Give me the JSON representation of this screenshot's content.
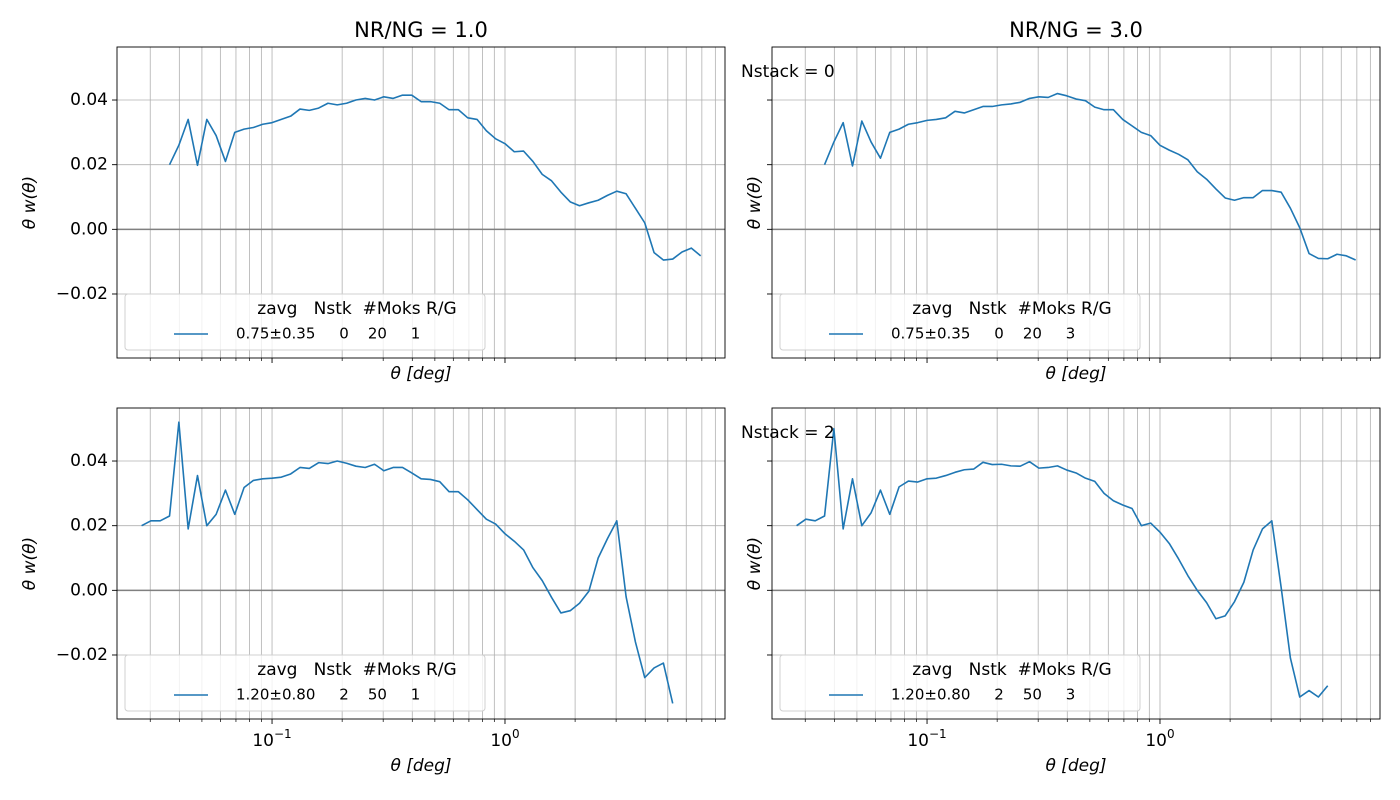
{
  "chart_data": [
    {
      "type": "line",
      "title": "NR/NG = 1.0",
      "xlabel": "θ [deg]",
      "ylabel": "θ w(θ)",
      "xscale": "log",
      "grid": true,
      "hline": 0,
      "xlim": [
        0.0216,
        8.8
      ],
      "ylim": [
        -0.0398,
        0.0564
      ],
      "xtick_labels": false,
      "ytick_labels": true,
      "xticks": [
        0.1,
        1
      ],
      "xminorticks": [
        0.03,
        0.04,
        0.05,
        0.06,
        0.07,
        0.08,
        0.09,
        0.2,
        0.3,
        0.4,
        0.5,
        0.6,
        0.7,
        0.8,
        0.9,
        2,
        3,
        4,
        5,
        6,
        7,
        8
      ],
      "yticks": [
        {
          "value": -0.02,
          "label": "−0.02"
        },
        {
          "value": 0,
          "label": "0.00"
        },
        {
          "value": 0.02,
          "label": "0.02"
        },
        {
          "value": 0.04,
          "label": "0.04"
        }
      ],
      "legend": "lower left",
      "legend_title": "zavg   Nstk  #Moks R/G",
      "x": [
        0.03631,
        0.03981,
        0.04365,
        0.04786,
        0.05248,
        0.05754,
        0.0631,
        0.06918,
        0.07586,
        0.08318,
        0.0912,
        0.1,
        0.1096,
        0.1202,
        0.1318,
        0.1445,
        0.1585,
        0.1738,
        0.1905,
        0.2089,
        0.2291,
        0.2512,
        0.2754,
        0.302,
        0.3311,
        0.3631,
        0.3981,
        0.4365,
        0.4786,
        0.5248,
        0.5754,
        0.631,
        0.6918,
        0.7586,
        0.8318,
        0.912,
        1,
        1.096,
        1.202,
        1.318,
        1.445,
        1.585,
        1.738,
        1.905,
        2.089,
        2.291,
        2.512,
        2.754,
        3.02,
        3.311,
        3.631,
        3.981,
        4.365,
        4.786,
        5.248,
        5.754,
        6.31,
        6.918
      ],
      "series": [
        {
          "name": "0.75±0.35     0    20     1",
          "color": "#1f77b4",
          "values": [
            0.02,
            0.026,
            0.034,
            0.0198,
            0.034,
            0.029,
            0.021,
            0.03,
            0.031,
            0.0315,
            0.0325,
            0.033,
            0.034,
            0.035,
            0.0372,
            0.0368,
            0.0375,
            0.039,
            0.0385,
            0.039,
            0.04,
            0.0405,
            0.04,
            0.041,
            0.0405,
            0.0415,
            0.0415,
            0.0395,
            0.0395,
            0.039,
            0.037,
            0.037,
            0.0345,
            0.034,
            0.0305,
            0.028,
            0.0265,
            0.024,
            0.0242,
            0.021,
            0.017,
            0.015,
            0.0115,
            0.0085,
            0.0073,
            0.0082,
            0.009,
            0.0105,
            0.0118,
            0.011,
            0.0065,
            0.002,
            -0.0072,
            -0.0095,
            -0.0092,
            -0.007,
            -0.0058,
            -0.0082
          ]
        }
      ]
    },
    {
      "type": "line",
      "title": "NR/NG = 3.0",
      "annotation": "Nstack = 0",
      "xlabel": "θ [deg]",
      "ylabel": "θ w(θ)",
      "xscale": "log",
      "grid": true,
      "hline": 0,
      "xlim": [
        0.0216,
        8.8
      ],
      "ylim": [
        -0.0398,
        0.0564
      ],
      "xtick_labels": false,
      "ytick_labels": false,
      "xticks": [
        0.1,
        1
      ],
      "xminorticks": [
        0.03,
        0.04,
        0.05,
        0.06,
        0.07,
        0.08,
        0.09,
        0.2,
        0.3,
        0.4,
        0.5,
        0.6,
        0.7,
        0.8,
        0.9,
        2,
        3,
        4,
        5,
        6,
        7,
        8
      ],
      "yticks": [
        -0.02,
        0,
        0.02,
        0.04
      ],
      "legend": "lower left",
      "legend_title": "zavg   Nstk  #Moks R/G",
      "x": [
        0.03631,
        0.03981,
        0.04365,
        0.04786,
        0.05248,
        0.05754,
        0.0631,
        0.06918,
        0.07586,
        0.08318,
        0.0912,
        0.1,
        0.1096,
        0.1202,
        0.1318,
        0.1445,
        0.1585,
        0.1738,
        0.1905,
        0.2089,
        0.2291,
        0.2512,
        0.2754,
        0.302,
        0.3311,
        0.3631,
        0.3981,
        0.4365,
        0.4786,
        0.5248,
        0.5754,
        0.631,
        0.6918,
        0.7586,
        0.8318,
        0.912,
        1,
        1.096,
        1.202,
        1.318,
        1.445,
        1.585,
        1.738,
        1.905,
        2.089,
        2.291,
        2.512,
        2.754,
        3.02,
        3.311,
        3.631,
        3.981,
        4.365,
        4.786,
        5.248,
        5.754,
        6.31,
        6.918
      ],
      "series": [
        {
          "name": "0.75±0.35     0    20     3",
          "color": "#1f77b4",
          "values": [
            0.02,
            0.027,
            0.033,
            0.0196,
            0.0335,
            0.027,
            0.022,
            0.03,
            0.031,
            0.0325,
            0.033,
            0.0337,
            0.034,
            0.0345,
            0.0365,
            0.036,
            0.037,
            0.038,
            0.038,
            0.0385,
            0.0388,
            0.0393,
            0.0405,
            0.041,
            0.0408,
            0.042,
            0.0413,
            0.0403,
            0.0398,
            0.0378,
            0.037,
            0.037,
            0.034,
            0.032,
            0.03,
            0.029,
            0.026,
            0.0245,
            0.0232,
            0.0215,
            0.0178,
            0.0155,
            0.0125,
            0.0097,
            0.009,
            0.0098,
            0.0098,
            0.012,
            0.012,
            0.0115,
            0.0065,
            0.0005,
            -0.0075,
            -0.009,
            -0.0091,
            -0.0077,
            -0.0082,
            -0.0095
          ]
        }
      ]
    },
    {
      "type": "line",
      "xlabel": "θ [deg]",
      "ylabel": "θ w(θ)",
      "xscale": "log",
      "grid": true,
      "hline": 0,
      "xlim": [
        0.0216,
        8.8
      ],
      "ylim": [
        -0.0398,
        0.0564
      ],
      "xtick_labels": true,
      "ytick_labels": true,
      "xticks": [
        {
          "value": 0.1,
          "label": "10",
          "exponent": "−1"
        },
        {
          "value": 1,
          "label": "10",
          "exponent": "0"
        }
      ],
      "xminorticks": [
        0.03,
        0.04,
        0.05,
        0.06,
        0.07,
        0.08,
        0.09,
        0.2,
        0.3,
        0.4,
        0.5,
        0.6,
        0.7,
        0.8,
        0.9,
        2,
        3,
        4,
        5,
        6,
        7,
        8
      ],
      "yticks": [
        {
          "value": -0.02,
          "label": "−0.02"
        },
        {
          "value": 0,
          "label": "0.00"
        },
        {
          "value": 0.02,
          "label": "0.02"
        },
        {
          "value": 0.04,
          "label": "0.04"
        }
      ],
      "legend": "lower left",
      "legend_title": "zavg   Nstk  #Moks R/G",
      "x": [
        0.02754,
        0.0302,
        0.03311,
        0.03631,
        0.03981,
        0.04365,
        0.04786,
        0.05248,
        0.05754,
        0.0631,
        0.06918,
        0.07586,
        0.08318,
        0.0912,
        0.1,
        0.1096,
        0.1202,
        0.1318,
        0.1445,
        0.1585,
        0.1738,
        0.1905,
        0.2089,
        0.2291,
        0.2512,
        0.2754,
        0.302,
        0.3311,
        0.3631,
        0.3981,
        0.4365,
        0.4786,
        0.5248,
        0.5754,
        0.631,
        0.6918,
        0.7586,
        0.8318,
        0.912,
        1,
        1.096,
        1.202,
        1.318,
        1.445,
        1.585,
        1.738,
        1.905,
        2.089,
        2.291,
        2.512,
        2.754,
        3.02,
        3.311,
        3.631,
        3.981,
        4.365,
        4.786,
        5.248
      ],
      "series": [
        {
          "name": "1.20±0.80     2    50     1",
          "color": "#1f77b4",
          "values": [
            0.02,
            0.0215,
            0.0215,
            0.023,
            0.052,
            0.019,
            0.0355,
            0.02,
            0.0235,
            0.031,
            0.0235,
            0.0318,
            0.034,
            0.0345,
            0.0347,
            0.035,
            0.036,
            0.038,
            0.0377,
            0.0395,
            0.0392,
            0.04,
            0.0393,
            0.0384,
            0.038,
            0.039,
            0.037,
            0.038,
            0.038,
            0.0363,
            0.0345,
            0.0343,
            0.0336,
            0.0305,
            0.0305,
            0.028,
            0.025,
            0.022,
            0.0205,
            0.0175,
            0.0152,
            0.0125,
            0.007,
            0.003,
            -0.0022,
            -0.007,
            -0.0063,
            -0.004,
            -0.0003,
            0.01,
            0.016,
            0.0215,
            -0.002,
            -0.016,
            -0.027,
            -0.024,
            -0.0225,
            -0.035
          ]
        }
      ]
    },
    {
      "type": "line",
      "annotation": "Nstack = 2",
      "xlabel": "θ [deg]",
      "ylabel": "θ w(θ)",
      "xscale": "log",
      "grid": true,
      "hline": 0,
      "xlim": [
        0.0216,
        8.8
      ],
      "ylim": [
        -0.0398,
        0.0564
      ],
      "xtick_labels": true,
      "ytick_labels": false,
      "xticks": [
        {
          "value": 0.1,
          "label": "10",
          "exponent": "−1"
        },
        {
          "value": 1,
          "label": "10",
          "exponent": "0"
        }
      ],
      "xminorticks": [
        0.03,
        0.04,
        0.05,
        0.06,
        0.07,
        0.08,
        0.09,
        0.2,
        0.3,
        0.4,
        0.5,
        0.6,
        0.7,
        0.8,
        0.9,
        2,
        3,
        4,
        5,
        6,
        7,
        8
      ],
      "yticks": [
        -0.02,
        0,
        0.02,
        0.04
      ],
      "legend": "lower left",
      "legend_title": "zavg   Nstk  #Moks R/G",
      "x": [
        0.02754,
        0.0302,
        0.03311,
        0.03631,
        0.03981,
        0.04365,
        0.04786,
        0.05248,
        0.05754,
        0.0631,
        0.06918,
        0.07586,
        0.08318,
        0.0912,
        0.1,
        0.1096,
        0.1202,
        0.1318,
        0.1445,
        0.1585,
        0.1738,
        0.1905,
        0.2089,
        0.2291,
        0.2512,
        0.2754,
        0.302,
        0.3311,
        0.3631,
        0.3981,
        0.4365,
        0.4786,
        0.5248,
        0.5754,
        0.631,
        0.6918,
        0.7586,
        0.8318,
        0.912,
        1,
        1.096,
        1.202,
        1.318,
        1.445,
        1.585,
        1.738,
        1.905,
        2.089,
        2.291,
        2.512,
        2.754,
        3.02,
        3.311,
        3.631,
        3.981,
        4.365,
        4.786,
        5.248
      ],
      "series": [
        {
          "name": "1.20±0.80     2    50     3",
          "color": "#1f77b4",
          "values": [
            0.02,
            0.022,
            0.0215,
            0.023,
            0.05,
            0.019,
            0.0345,
            0.02,
            0.024,
            0.031,
            0.0235,
            0.032,
            0.0338,
            0.0335,
            0.0345,
            0.0347,
            0.0355,
            0.0365,
            0.0373,
            0.0375,
            0.0396,
            0.0389,
            0.039,
            0.0385,
            0.0384,
            0.0398,
            0.0378,
            0.038,
            0.0385,
            0.0372,
            0.0363,
            0.0347,
            0.0337,
            0.03,
            0.0277,
            0.0264,
            0.0253,
            0.02,
            0.0208,
            0.018,
            0.0145,
            0.0097,
            0.0045,
            0,
            -0.0038,
            -0.0088,
            -0.0079,
            -0.0035,
            0.0025,
            0.0125,
            0.019,
            0.0215,
            0.001,
            -0.021,
            -0.033,
            -0.031,
            -0.033,
            -0.0295
          ]
        }
      ]
    }
  ]
}
